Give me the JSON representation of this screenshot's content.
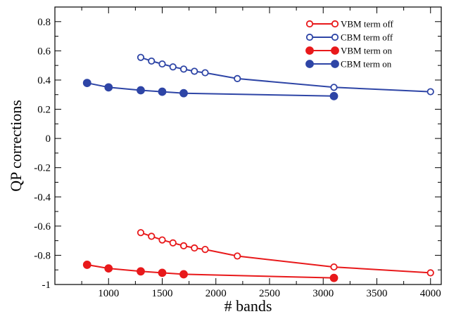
{
  "chart_data": {
    "type": "line",
    "xlabel": "# bands",
    "ylabel": "QP corrections",
    "xlim": [
      500,
      4100
    ],
    "ylim": [
      -1,
      0.9
    ],
    "x_ticks": [
      1000,
      1500,
      2000,
      2500,
      3000,
      3500,
      4000
    ],
    "y_ticks": [
      -1,
      -0.8,
      -0.6,
      -0.4,
      -0.2,
      0,
      0.2,
      0.4,
      0.6,
      0.8
    ],
    "x_tick_labels": [
      "1000",
      "1500",
      "2000",
      "2500",
      "3000",
      "3500",
      "4000"
    ],
    "y_tick_labels": [
      "-1",
      "-0.8",
      "-0.6",
      "-0.4",
      "-0.2",
      "0",
      "0.2",
      "0.4",
      "0.6",
      "0.8"
    ],
    "grid": false,
    "legend_position": "top-right",
    "series": [
      {
        "name": "VBM term off",
        "color": "#e8191b",
        "marker": "open-circle",
        "x": [
          1300,
          1400,
          1500,
          1600,
          1700,
          1800,
          1900,
          2200,
          3100,
          4000
        ],
        "y": [
          -0.645,
          -0.67,
          -0.695,
          -0.715,
          -0.735,
          -0.75,
          -0.76,
          -0.805,
          -0.88,
          -0.92
        ]
      },
      {
        "name": "CBM term off",
        "color": "#2e45a6",
        "marker": "open-circle",
        "x": [
          1300,
          1400,
          1500,
          1600,
          1700,
          1800,
          1900,
          2200,
          3100,
          4000
        ],
        "y": [
          0.555,
          0.53,
          0.51,
          0.49,
          0.475,
          0.46,
          0.45,
          0.41,
          0.35,
          0.32
        ]
      },
      {
        "name": "VBM term on",
        "color": "#e8191b",
        "marker": "filled-circle",
        "x": [
          800,
          1000,
          1300,
          1500,
          1700,
          3100
        ],
        "y": [
          -0.865,
          -0.89,
          -0.91,
          -0.92,
          -0.93,
          -0.955
        ]
      },
      {
        "name": "CBM term on",
        "color": "#2e45a6",
        "marker": "filled-circle",
        "x": [
          800,
          1000,
          1300,
          1500,
          1700,
          3100
        ],
        "y": [
          0.38,
          0.35,
          0.33,
          0.32,
          0.31,
          0.29
        ]
      }
    ]
  }
}
